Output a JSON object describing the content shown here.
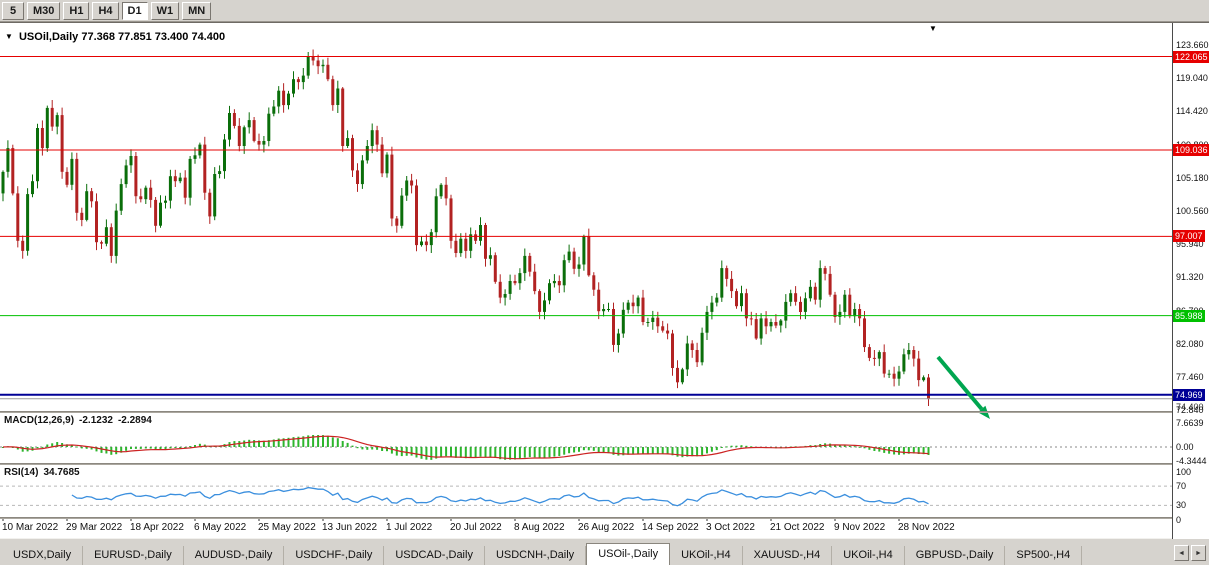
{
  "toolbar": {
    "timeframes": [
      {
        "label": "5",
        "active": false
      },
      {
        "label": "M30",
        "active": false
      },
      {
        "label": "H1",
        "active": false
      },
      {
        "label": "H4",
        "active": false
      },
      {
        "label": "D1",
        "active": true
      },
      {
        "label": "W1",
        "active": false
      },
      {
        "label": "MN",
        "active": false
      }
    ]
  },
  "icons": {
    "chart_dropdown": "▼",
    "shift_marker": "▼",
    "tab_scroll_left": "◄",
    "tab_scroll_right": "►"
  },
  "chart": {
    "title_symbol": "USOil,Daily",
    "ohlc_text": "77.368 77.851 73.400 74.400",
    "current_price_label": "74.400",
    "price_axis_labels": [
      "123.660",
      "119.040",
      "114.420",
      "109.800",
      "105.180",
      "100.560",
      "95.940",
      "91.320",
      "86.700",
      "82.080",
      "77.460",
      "72.840"
    ],
    "levels": [
      {
        "label": "122.065",
        "price": 122.065,
        "color": "#e60000",
        "width": 1
      },
      {
        "label": "109.036",
        "price": 109.036,
        "color": "#e60000",
        "width": 1
      },
      {
        "label": "97.007",
        "price": 97.007,
        "color": "#e60000",
        "width": 1
      },
      {
        "label": "85.988",
        "price": 85.988,
        "color": "#00c000",
        "width": 1
      },
      {
        "label": "74.969",
        "price": 74.969,
        "color": "#000096",
        "width": 2
      }
    ]
  },
  "chart_data": {
    "type": "candlestick",
    "symbol": "USOil",
    "timeframe": "Daily",
    "first_open": 103.0,
    "closes": [
      106.0,
      109.3,
      103.0,
      96.4,
      95.0,
      102.9,
      104.7,
      112.1,
      109.3,
      114.9,
      112.3,
      113.9,
      106.0,
      104.2,
      107.8,
      100.3,
      99.3,
      103.3,
      101.9,
      96.2,
      96.0,
      98.3,
      94.3,
      100.6,
      104.3,
      106.9,
      108.2,
      102.6,
      102.2,
      103.8,
      102.1,
      98.5,
      101.7,
      102.0,
      105.4,
      104.7,
      105.2,
      102.4,
      107.8,
      108.3,
      109.8,
      103.1,
      99.8,
      105.7,
      106.1,
      110.5,
      114.2,
      112.4,
      109.6,
      112.2,
      113.2,
      110.3,
      109.8,
      110.3,
      114.1,
      115.1,
      117.3,
      115.3,
      116.9,
      118.9,
      118.5,
      119.4,
      122.1,
      121.5,
      120.7,
      120.9,
      118.9,
      115.3,
      117.6,
      109.6,
      110.7,
      106.2,
      104.3,
      107.6,
      109.6,
      111.8,
      109.8,
      105.8,
      108.4,
      99.5,
      98.5,
      102.7,
      104.8,
      104.1,
      95.8,
      96.3,
      95.8,
      97.6,
      102.6,
      104.2,
      102.3,
      96.4,
      94.7,
      96.7,
      95.0,
      97.3,
      96.4,
      98.6,
      93.9,
      94.4,
      90.7,
      88.5,
      89.0,
      90.8,
      90.5,
      91.9,
      94.3,
      92.1,
      89.4,
      86.5,
      88.1,
      90.5,
      90.8,
      90.2,
      93.7,
      94.9,
      92.5,
      93.1,
      97.0,
      91.6,
      89.6,
      86.6,
      86.9,
      86.9,
      81.9,
      83.5,
      86.8,
      87.8,
      87.3,
      88.5,
      85.1,
      85.1,
      85.7,
      84.5,
      83.9,
      83.5,
      78.7,
      76.7,
      78.5,
      82.1,
      81.2,
      79.5,
      83.6,
      86.5,
      87.8,
      88.5,
      92.6,
      91.1,
      89.4,
      87.3,
      89.1,
      85.6,
      85.5,
      82.8,
      85.6,
      84.5,
      85.1,
      84.6,
      85.3,
      87.9,
      89.1,
      87.9,
      86.5,
      88.4,
      90.0,
      88.2,
      92.6,
      91.8,
      88.9,
      85.8,
      86.5,
      88.9,
      85.9,
      86.9,
      85.6,
      81.6,
      80.1,
      80.0,
      80.9,
      77.9,
      77.9,
      77.2,
      78.2,
      80.6,
      81.2,
      80.0,
      77.0,
      77.4,
      74.4
    ],
    "last_ohlc": [
      77.368,
      77.851,
      73.4,
      74.4
    ],
    "levels": [
      122.065,
      109.036,
      97.007,
      85.988,
      74.969
    ],
    "dates": [
      "10 Mar 2022",
      "29 Mar 2022",
      "18 Apr 2022",
      "6 May 2022",
      "25 May 2022",
      "13 Jun 2022",
      "1 Jul 2022",
      "20 Jul 2022",
      "8 Aug 2022",
      "26 Aug 2022",
      "14 Sep 2022",
      "3 Oct 2022",
      "21 Oct 2022",
      "9 Nov 2022",
      "28 Nov 2022"
    ],
    "date_tick_step": 13
  },
  "macd": {
    "label": "MACD(12,26,9)",
    "value_main": "-2.1232",
    "value_signal": "-2.2894",
    "axis_labels": [
      {
        "text": "7.6639",
        "value": 7.6639
      },
      {
        "text": "0.00",
        "value": 0
      },
      {
        "text": "-4.3444",
        "value": -4.3444
      }
    ]
  },
  "rsi": {
    "label": "RSI(14)",
    "value": "34.7685",
    "axis_labels": [
      {
        "text": "100",
        "value": 100
      },
      {
        "text": "70",
        "value": 70
      },
      {
        "text": "30",
        "value": 30
      },
      {
        "text": "0",
        "value": 0
      }
    ],
    "levels": [
      70,
      30
    ]
  },
  "tabs": {
    "items": [
      {
        "label": "USDX,Daily",
        "active": false
      },
      {
        "label": "EURUSD-,Daily",
        "active": false
      },
      {
        "label": "AUDUSD-,Daily",
        "active": false
      },
      {
        "label": "USDCHF-,Daily",
        "active": false
      },
      {
        "label": "USDCAD-,Daily",
        "active": false
      },
      {
        "label": "USDCNH-,Daily",
        "active": false
      },
      {
        "label": "USOil-,Daily",
        "active": true
      },
      {
        "label": "UKOil-,H4",
        "active": false
      },
      {
        "label": "XAUUSD-,H4",
        "active": false
      },
      {
        "label": "UKOil-,H4",
        "active": false
      },
      {
        "label": "GBPUSD-,Daily",
        "active": false
      },
      {
        "label": "SP500-,H4",
        "active": false
      }
    ]
  },
  "colors": {
    "bull": "#0a6e0a",
    "bear": "#b22222",
    "macd_bar": "#2db52d",
    "macd_signal": "#cc2222",
    "rsi_line": "#3b8fde",
    "rsi_level": "#b8b8b8",
    "bid_line": "#9a9a9a",
    "arrow": "#00a650"
  }
}
